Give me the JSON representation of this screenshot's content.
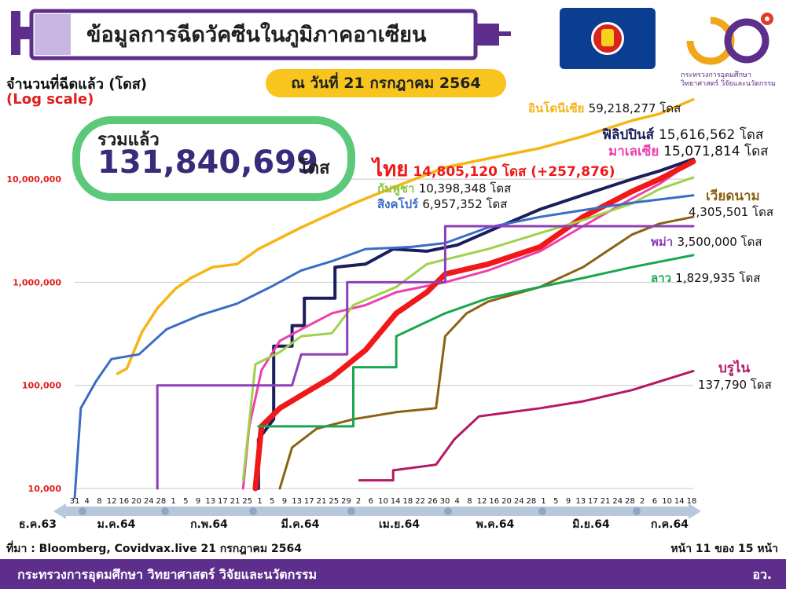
{
  "header": {
    "title": "ข้อมูลการฉีดวัคซีนในภูมิภาคอาเซียน",
    "date_label": "ณ วันที่ 21 กรกฎาคม 2564",
    "logo_line1": "กระทรวงการอุดมศึกษา",
    "logo_line2": "วิทยาศาสตร์ วิจัยและนวัตกรรม"
  },
  "axis": {
    "ylabel": "จำนวนที่ฉีดแล้ว (โดส)",
    "yscale_note": "(Log scale)"
  },
  "total": {
    "label": "รวมแล้ว",
    "value": "131,840,699",
    "unit": "โดส"
  },
  "footer": {
    "source": "ที่มา : Bloomberg, Covidvax.live 21 กรกฎาคม 2564",
    "page": "หน้า 11 ของ 15 หน้า",
    "ministry": "กระทรวงการอุดมศึกษา วิทยาศาสตร์ วิจัยและนวัตกรรม",
    "abbr": "อว."
  },
  "colors": {
    "indonesia": "#f5b514",
    "philippines": "#1b1d5c",
    "malaysia": "#ee3fae",
    "thailand": "#f01818",
    "cambodia": "#9ed24a",
    "singapore": "#3a6cc6",
    "vietnam": "#8a6212",
    "myanmar": "#8e3fb8",
    "laos": "#1aa650",
    "brunei": "#b51765"
  },
  "chart_data": {
    "type": "line",
    "yscale": "log",
    "ylim": [
      10000,
      60000000
    ],
    "yticks": [
      "10,000",
      "100,000",
      "1,000,000",
      "10,000,000"
    ],
    "xlim": [
      "2020-12-31",
      "2021-07-21"
    ],
    "xtick_labels": [
      "31",
      "4",
      "8",
      "12",
      "16",
      "20",
      "24",
      "28",
      "1",
      "5",
      "9",
      "13",
      "17",
      "21",
      "25",
      "1",
      "5",
      "9",
      "13",
      "17",
      "21",
      "25",
      "29",
      "2",
      "6",
      "10",
      "14",
      "18",
      "22",
      "26",
      "30",
      "4",
      "8",
      "12",
      "16",
      "20",
      "24",
      "28",
      "1",
      "5",
      "9",
      "13",
      "17",
      "21",
      "24",
      "28",
      "2",
      "6",
      "10",
      "14",
      "18"
    ],
    "month_labels": [
      "ธ.ค.63",
      "ม.ค.64",
      "ก.พ.64",
      "มี.ค.64",
      "เม.ย.64",
      "พ.ค.64",
      "มิ.ย.64",
      "ก.ค.64"
    ],
    "series": [
      {
        "name": "อินโดนีเซีย",
        "value_label": "59,218,277 โดส",
        "color": "#f5b514",
        "width": 3.5,
        "points": [
          [
            "2021-01-14",
            130000
          ],
          [
            "2021-01-17",
            145000
          ],
          [
            "2021-01-22",
            330000
          ],
          [
            "2021-01-27",
            560000
          ],
          [
            "2021-02-02",
            870000
          ],
          [
            "2021-02-07",
            1100000
          ],
          [
            "2021-02-14",
            1400000
          ],
          [
            "2021-02-22",
            1500000
          ],
          [
            "2021-03-01",
            2100000
          ],
          [
            "2021-03-15",
            3400000
          ],
          [
            "2021-04-01",
            5800000
          ],
          [
            "2021-04-14",
            8300000
          ],
          [
            "2021-05-01",
            13000000
          ],
          [
            "2021-05-18",
            16500000
          ],
          [
            "2021-06-01",
            20000000
          ],
          [
            "2021-06-15",
            26000000
          ],
          [
            "2021-07-01",
            37000000
          ],
          [
            "2021-07-10",
            43000000
          ],
          [
            "2021-07-21",
            59218277
          ]
        ]
      },
      {
        "name": "ฟิลิปปินส์",
        "value_label": "15,616,562 โดส",
        "color": "#1b1d5c",
        "width": 4,
        "points": [
          [
            "2021-03-01",
            10000
          ],
          [
            "2021-03-01",
            30000
          ],
          [
            "2021-03-06",
            47000
          ],
          [
            "2021-03-06",
            240000
          ],
          [
            "2021-03-12",
            240000
          ],
          [
            "2021-03-12",
            380000
          ],
          [
            "2021-03-16",
            380000
          ],
          [
            "2021-03-16",
            700000
          ],
          [
            "2021-03-26",
            700000
          ],
          [
            "2021-03-26",
            1400000
          ],
          [
            "2021-04-05",
            1500000
          ],
          [
            "2021-04-14",
            2100000
          ],
          [
            "2021-04-25",
            2000000
          ],
          [
            "2021-05-05",
            2300000
          ],
          [
            "2021-05-20",
            3600000
          ],
          [
            "2021-06-01",
            5100000
          ],
          [
            "2021-06-15",
            7000000
          ],
          [
            "2021-07-01",
            10000000
          ],
          [
            "2021-07-10",
            12000000
          ],
          [
            "2021-07-21",
            15616562
          ]
        ]
      },
      {
        "name": "มาเลเซีย",
        "value_label": "15,071,814 โดส",
        "color": "#ee3fae",
        "width": 3,
        "points": [
          [
            "2021-02-24",
            10000
          ],
          [
            "2021-02-26",
            40000
          ],
          [
            "2021-03-02",
            140000
          ],
          [
            "2021-03-08",
            270000
          ],
          [
            "2021-03-15",
            350000
          ],
          [
            "2021-03-25",
            500000
          ],
          [
            "2021-04-05",
            600000
          ],
          [
            "2021-04-15",
            800000
          ],
          [
            "2021-05-01",
            1000000
          ],
          [
            "2021-05-15",
            1300000
          ],
          [
            "2021-06-01",
            2000000
          ],
          [
            "2021-06-15",
            3500000
          ],
          [
            "2021-07-01",
            6500000
          ],
          [
            "2021-07-10",
            9000000
          ],
          [
            "2021-07-21",
            15071814
          ]
        ]
      },
      {
        "name": "ไทย",
        "value_label": "14,805,120 โดส (+257,876)",
        "color": "#f01818",
        "width": 7,
        "points": [
          [
            "2021-02-28",
            10000
          ],
          [
            "2021-03-02",
            40000
          ],
          [
            "2021-03-08",
            60000
          ],
          [
            "2021-03-15",
            80000
          ],
          [
            "2021-03-25",
            120000
          ],
          [
            "2021-04-05",
            220000
          ],
          [
            "2021-04-15",
            500000
          ],
          [
            "2021-04-25",
            800000
          ],
          [
            "2021-05-01",
            1200000
          ],
          [
            "2021-05-15",
            1500000
          ],
          [
            "2021-06-01",
            2200000
          ],
          [
            "2021-06-15",
            4300000
          ],
          [
            "2021-07-01",
            7600000
          ],
          [
            "2021-07-10",
            10000000
          ],
          [
            "2021-07-21",
            14805120
          ]
        ]
      },
      {
        "name": "กัมพูชา",
        "value_label": "10,398,348 โดส",
        "color": "#9ed24a",
        "width": 3,
        "points": [
          [
            "2021-02-24",
            12000
          ],
          [
            "2021-02-28",
            160000
          ],
          [
            "2021-03-08",
            210000
          ],
          [
            "2021-03-15",
            300000
          ],
          [
            "2021-03-25",
            320000
          ],
          [
            "2021-04-01",
            600000
          ],
          [
            "2021-04-15",
            900000
          ],
          [
            "2021-04-25",
            1500000
          ],
          [
            "2021-05-15",
            2100000
          ],
          [
            "2021-06-01",
            3000000
          ],
          [
            "2021-06-15",
            4000000
          ],
          [
            "2021-07-01",
            5800000
          ],
          [
            "2021-07-10",
            8000000
          ],
          [
            "2021-07-21",
            10398348
          ]
        ]
      },
      {
        "name": "สิงคโปร์",
        "value_label": "6,957,352 โดส",
        "color": "#3a6cc6",
        "width": 3,
        "points": [
          [
            "2020-12-31",
            0
          ],
          [
            "2021-01-02",
            60000
          ],
          [
            "2021-01-07",
            110000
          ],
          [
            "2021-01-12",
            180000
          ],
          [
            "2021-01-21",
            200000
          ],
          [
            "2021-01-30",
            350000
          ],
          [
            "2021-02-10",
            480000
          ],
          [
            "2021-02-22",
            620000
          ],
          [
            "2021-03-05",
            900000
          ],
          [
            "2021-03-15",
            1300000
          ],
          [
            "2021-03-25",
            1600000
          ],
          [
            "2021-04-05",
            2100000
          ],
          [
            "2021-04-20",
            2200000
          ],
          [
            "2021-05-01",
            2400000
          ],
          [
            "2021-05-15",
            3400000
          ],
          [
            "2021-06-01",
            4300000
          ],
          [
            "2021-06-15",
            5000000
          ],
          [
            "2021-07-01",
            5900000
          ],
          [
            "2021-07-21",
            6957352
          ]
        ]
      },
      {
        "name": "เวียดนาม",
        "value_label": "4,305,501 โดส",
        "color": "#8a6212",
        "width": 3,
        "points": [
          [
            "2021-03-08",
            10000
          ],
          [
            "2021-03-12",
            25000
          ],
          [
            "2021-03-20",
            38000
          ],
          [
            "2021-04-01",
            47000
          ],
          [
            "2021-04-15",
            55000
          ],
          [
            "2021-04-28",
            60000
          ],
          [
            "2021-05-01",
            300000
          ],
          [
            "2021-05-08",
            500000
          ],
          [
            "2021-05-15",
            650000
          ],
          [
            "2021-06-01",
            900000
          ],
          [
            "2021-06-15",
            1400000
          ],
          [
            "2021-07-01",
            2900000
          ],
          [
            "2021-07-10",
            3700000
          ],
          [
            "2021-07-21",
            4305501
          ]
        ]
      },
      {
        "name": "พม่า",
        "value_label": "3,500,000 โดส",
        "color": "#8e3fb8",
        "width": 3,
        "points": [
          [
            "2021-01-27",
            10000
          ],
          [
            "2021-01-27",
            100000
          ],
          [
            "2021-02-10",
            100000
          ],
          [
            "2021-03-05",
            100000
          ],
          [
            "2021-03-12",
            100000
          ],
          [
            "2021-03-15",
            200000
          ],
          [
            "2021-03-30",
            200000
          ],
          [
            "2021-03-30",
            1000000
          ],
          [
            "2021-04-20",
            1000000
          ],
          [
            "2021-05-01",
            1000000
          ],
          [
            "2021-05-01",
            3500000
          ],
          [
            "2021-07-21",
            3500000
          ]
        ]
      },
      {
        "name": "ลาว",
        "value_label": "1,829,935 โดส",
        "color": "#1aa650",
        "width": 3,
        "points": [
          [
            "2021-03-01",
            40000
          ],
          [
            "2021-04-01",
            40000
          ],
          [
            "2021-04-01",
            150000
          ],
          [
            "2021-04-15",
            150000
          ],
          [
            "2021-04-15",
            300000
          ],
          [
            "2021-05-01",
            500000
          ],
          [
            "2021-05-15",
            700000
          ],
          [
            "2021-06-01",
            900000
          ],
          [
            "2021-06-15",
            1100000
          ],
          [
            "2021-07-01",
            1400000
          ],
          [
            "2021-07-21",
            1829935
          ]
        ]
      },
      {
        "name": "บรูไน",
        "value_label": "137,790 โดส",
        "color": "#b51765",
        "width": 3,
        "points": [
          [
            "2021-04-03",
            12000
          ],
          [
            "2021-04-14",
            12000
          ],
          [
            "2021-04-14",
            15000
          ],
          [
            "2021-04-28",
            17000
          ],
          [
            "2021-05-04",
            30000
          ],
          [
            "2021-05-12",
            50000
          ],
          [
            "2021-06-01",
            60000
          ],
          [
            "2021-06-15",
            70000
          ],
          [
            "2021-07-01",
            90000
          ],
          [
            "2021-07-21",
            137790
          ]
        ]
      }
    ]
  }
}
